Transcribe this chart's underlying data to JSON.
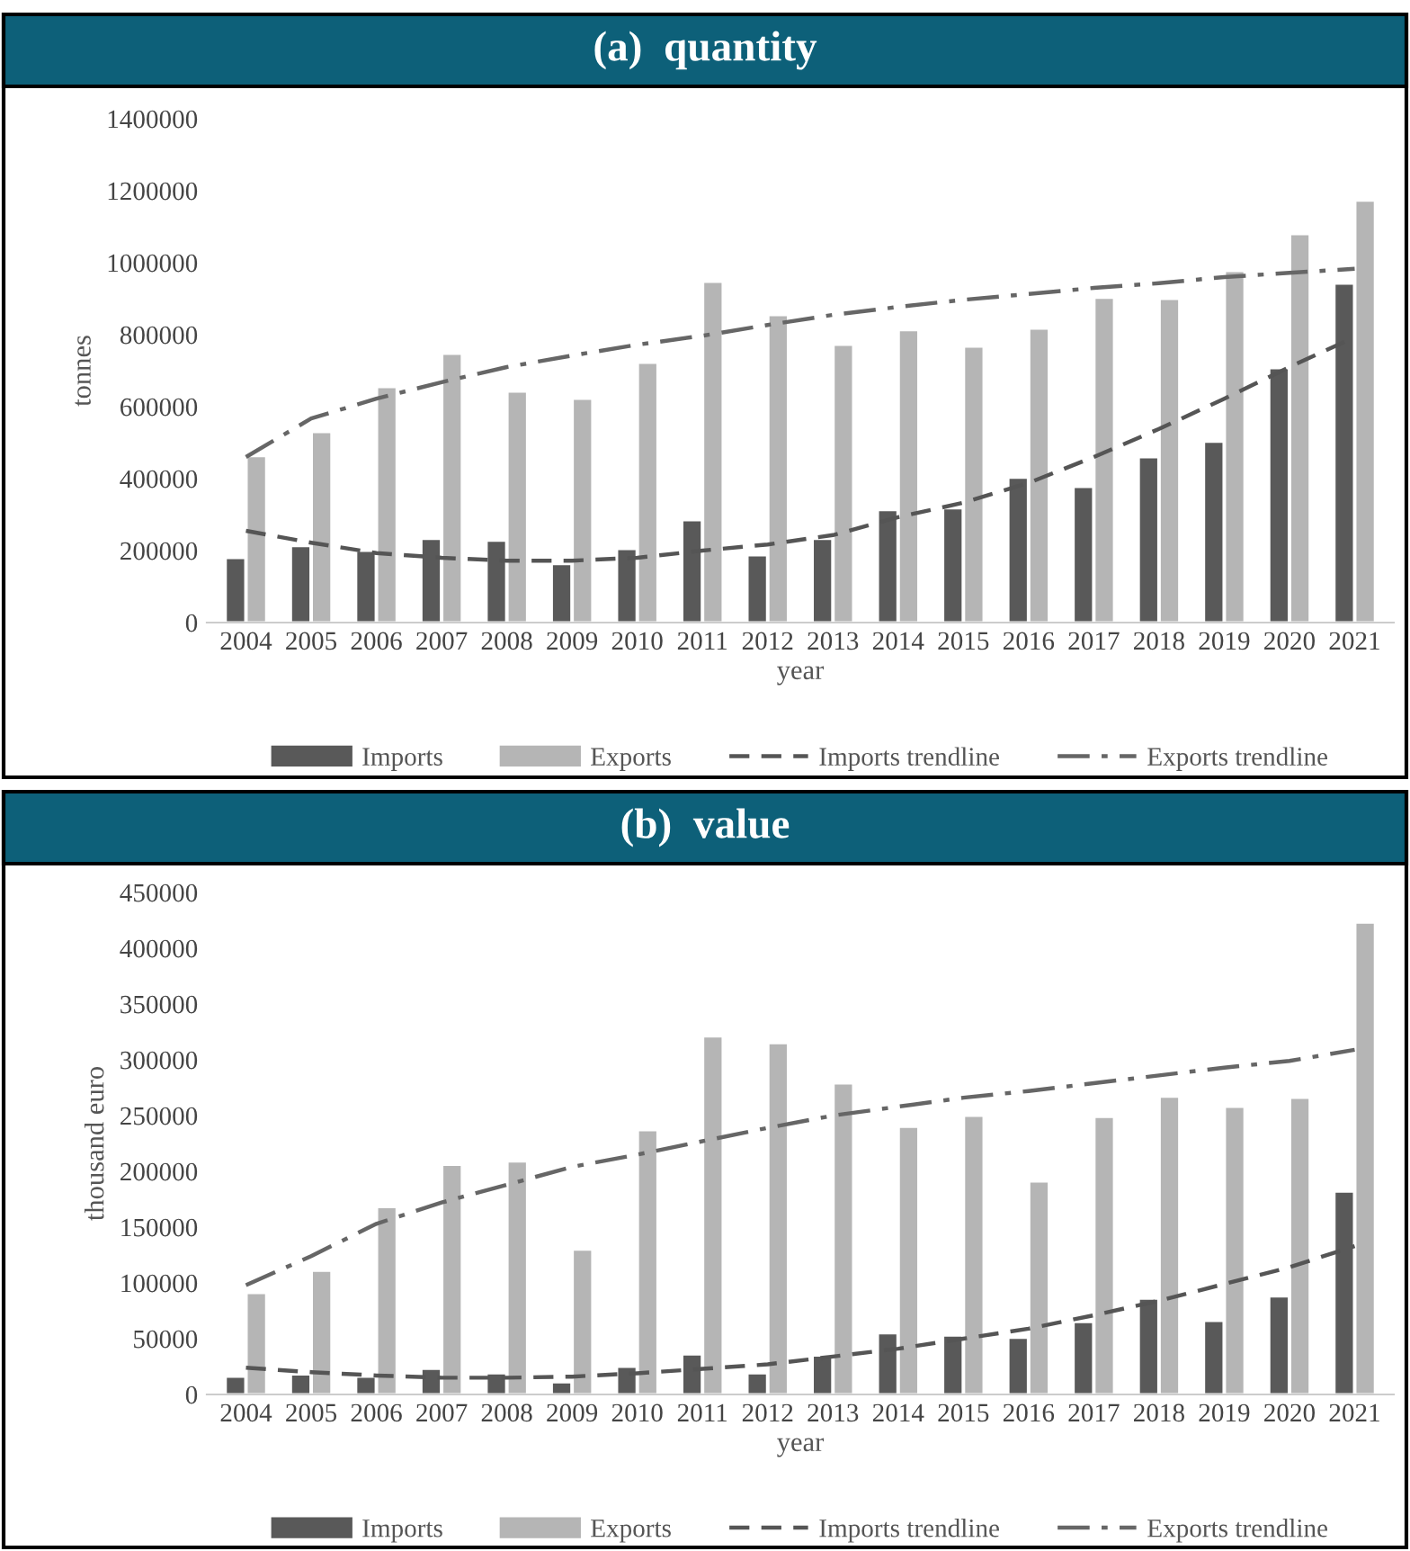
{
  "chart_data": [
    {
      "type": "bar",
      "title": "(a)  quantity",
      "xlabel": "year",
      "ylabel": "tonnes",
      "categories": [
        "2004",
        "2005",
        "2006",
        "2007",
        "2008",
        "2009",
        "2010",
        "2011",
        "2012",
        "2013",
        "2014",
        "2015",
        "2016",
        "2017",
        "2018",
        "2019",
        "2020",
        "2021"
      ],
      "ylim": [
        0,
        1400000
      ],
      "yticks": [
        0,
        200000,
        400000,
        600000,
        800000,
        1000000,
        1200000,
        1400000
      ],
      "grid": false,
      "legend": "bottom",
      "series": [
        {
          "name": "Imports",
          "color": "#595959",
          "values": [
            180000,
            213000,
            200000,
            233000,
            228000,
            163000,
            205000,
            285000,
            187000,
            233000,
            313000,
            318000,
            403000,
            377000,
            460000,
            503000,
            707000,
            942000
          ]
        },
        {
          "name": "Exports",
          "color": "#b5b5b5",
          "values": [
            463000,
            530000,
            655000,
            747000,
            642000,
            622000,
            722000,
            947000,
            855000,
            772000,
            813000,
            767000,
            817000,
            903000,
            900000,
            977000,
            1080000,
            1173000
          ]
        },
        {
          "name": "Imports trendline",
          "type": "line",
          "color": "#555555",
          "line_style": "dashed",
          "values": [
            255000,
            222000,
            193000,
            180000,
            172000,
            172000,
            180000,
            200000,
            217000,
            243000,
            293000,
            333000,
            388000,
            460000,
            538000,
            622000,
            710000,
            793000
          ]
        },
        {
          "name": "Exports trendline",
          "type": "line",
          "color": "#666666",
          "line_style": "dashdot",
          "values": [
            460000,
            567000,
            622000,
            668000,
            710000,
            742000,
            772000,
            797000,
            827000,
            855000,
            877000,
            897000,
            913000,
            930000,
            943000,
            960000,
            972000,
            983000
          ]
        }
      ]
    },
    {
      "type": "bar",
      "title": "(b)  value",
      "xlabel": "year",
      "ylabel": "thousand euro",
      "categories": [
        "2004",
        "2005",
        "2006",
        "2007",
        "2008",
        "2009",
        "2010",
        "2011",
        "2012",
        "2013",
        "2014",
        "2015",
        "2016",
        "2017",
        "2018",
        "2019",
        "2020",
        "2021"
      ],
      "ylim": [
        0,
        450000
      ],
      "yticks": [
        0,
        50000,
        100000,
        150000,
        200000,
        250000,
        300000,
        350000,
        400000,
        450000
      ],
      "grid": false,
      "legend": "bottom",
      "series": [
        {
          "name": "Imports",
          "color": "#595959",
          "values": [
            16000,
            18000,
            16000,
            23000,
            19000,
            11000,
            25000,
            36000,
            19000,
            35000,
            55000,
            53000,
            51000,
            65000,
            86000,
            66000,
            88000,
            182000
          ]
        },
        {
          "name": "Exports",
          "color": "#b5b5b5",
          "values": [
            91000,
            111000,
            168000,
            206000,
            209000,
            130000,
            237000,
            321000,
            315000,
            279000,
            240000,
            250000,
            191000,
            249000,
            267000,
            258000,
            266000,
            423000
          ]
        },
        {
          "name": "Imports trendline",
          "type": "line",
          "color": "#555555",
          "line_style": "dashed",
          "values": [
            24000,
            20000,
            17000,
            15000,
            15000,
            16000,
            19000,
            23000,
            27000,
            34000,
            41000,
            50000,
            59000,
            71000,
            84000,
            99000,
            114000,
            133000
          ]
        },
        {
          "name": "Exports trendline",
          "type": "line",
          "color": "#666666",
          "line_style": "dashdot",
          "values": [
            98000,
            124000,
            153000,
            172000,
            188000,
            204000,
            215000,
            227000,
            239000,
            250000,
            258000,
            266000,
            272000,
            279000,
            286000,
            293000,
            299000,
            309000
          ]
        }
      ]
    }
  ]
}
